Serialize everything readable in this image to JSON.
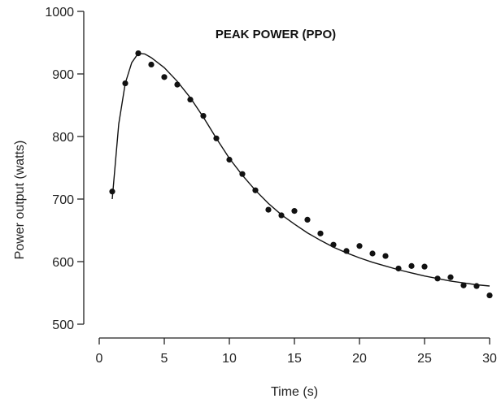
{
  "chart_data": {
    "type": "scatter",
    "title": "PEAK POWER (PPO)",
    "xlabel": "Time (s)",
    "ylabel": "Power output (watts)",
    "xlim": [
      0,
      30
    ],
    "ylim": [
      500,
      1000
    ],
    "xticks": [
      0,
      5,
      10,
      15,
      20,
      25,
      30
    ],
    "yticks": [
      500,
      600,
      700,
      800,
      900,
      1000
    ],
    "grid": false,
    "colors": {
      "marker": "#111111",
      "curve": "#111111",
      "axis": "#222222"
    },
    "series": [
      {
        "type": "scatter",
        "x": [
          1,
          2,
          3,
          4,
          5,
          6,
          7,
          8,
          9,
          10,
          11,
          12,
          13,
          14,
          15,
          16,
          17,
          18,
          19,
          20,
          21,
          22,
          23,
          24,
          25,
          26,
          27,
          28,
          29,
          30
        ],
        "y": [
          712,
          885,
          933,
          915,
          895,
          883,
          859,
          833,
          797,
          763,
          740,
          714,
          683,
          674,
          681,
          667,
          645,
          627,
          617,
          625,
          613,
          609,
          589,
          593,
          592,
          573,
          575,
          562,
          561,
          546
        ]
      },
      {
        "type": "line",
        "x": [
          1,
          1.5,
          2,
          2.5,
          3,
          3.5,
          4,
          5,
          6,
          7,
          8,
          9,
          10,
          11,
          12,
          13,
          14,
          15,
          16,
          17,
          18,
          19,
          20,
          21,
          22,
          23,
          24,
          25,
          26,
          27,
          28,
          29,
          30
        ],
        "y": [
          700,
          820,
          885,
          918,
          933,
          932,
          926,
          910,
          888,
          862,
          831,
          797,
          765,
          738,
          714,
          693,
          675,
          660,
          646,
          634,
          623,
          614,
          606,
          599,
          593,
          587,
          582,
          577,
          573,
          569,
          566,
          563,
          561
        ]
      }
    ]
  }
}
